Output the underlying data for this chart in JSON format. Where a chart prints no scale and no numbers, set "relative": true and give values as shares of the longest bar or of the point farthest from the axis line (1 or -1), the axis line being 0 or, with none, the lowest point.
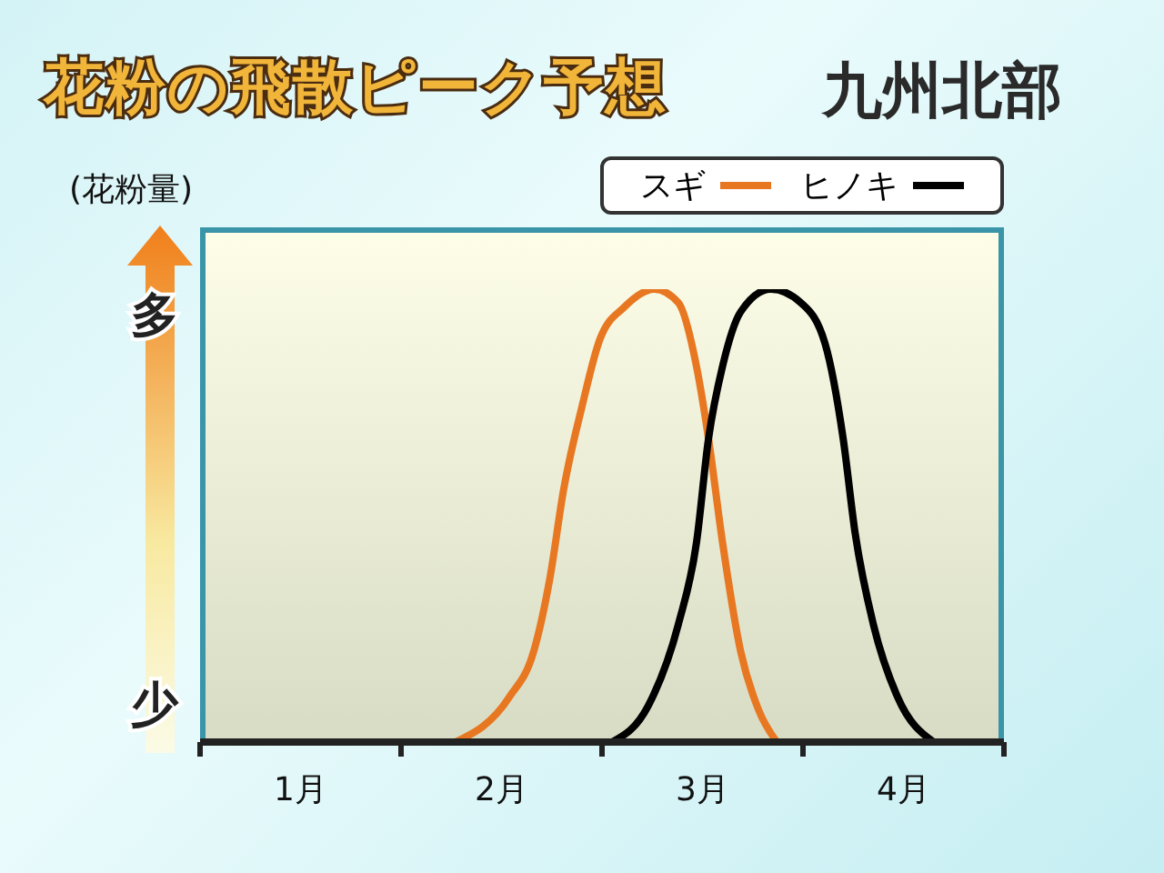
{
  "chart_data": {
    "type": "line",
    "title": "花粉の飛散ピーク予想",
    "subtitle": "九州北部",
    "ylabel": "(花粉量)",
    "annotations": [
      "多",
      "少"
    ],
    "relative": true,
    "legend": "top right",
    "marker": "none",
    "line_style": "solid",
    "xlim": [
      1,
      5
    ],
    "xticks": [
      {
        "value": 1,
        "label": null
      },
      {
        "value": 1.5,
        "label": "1月"
      },
      {
        "value": 2,
        "label": null
      },
      {
        "value": 2.5,
        "label": "2月"
      },
      {
        "value": 3,
        "label": null
      },
      {
        "value": 3.5,
        "label": "3月"
      },
      {
        "value": 4,
        "label": null
      },
      {
        "value": 4.5,
        "label": "4月"
      },
      {
        "value": 5,
        "label": null
      }
    ],
    "series": [
      {
        "name": "スギ",
        "color": "#e87722",
        "x": [
          2.27,
          2.54,
          2.66,
          2.74,
          2.81,
          2.9,
          2.99,
          3.11,
          3.26,
          3.38,
          3.47,
          3.53,
          3.6,
          3.69,
          3.78,
          3.87
        ],
        "values": [
          0,
          0.1,
          0.2,
          0.36,
          0.56,
          0.74,
          0.89,
          0.96,
          1,
          0.97,
          0.83,
          0.67,
          0.44,
          0.2,
          0.07,
          0
        ]
      },
      {
        "name": "ヒノキ",
        "color": "#000000",
        "x": [
          3.05,
          3.23,
          3.38,
          3.47,
          3.53,
          3.6,
          3.69,
          3.84,
          3.99,
          4.11,
          4.2,
          4.26,
          4.35,
          4.47,
          4.65
        ],
        "values": [
          0,
          0.08,
          0.26,
          0.44,
          0.67,
          0.83,
          0.95,
          1,
          0.97,
          0.88,
          0.67,
          0.46,
          0.26,
          0.1,
          0
        ]
      }
    ]
  }
}
